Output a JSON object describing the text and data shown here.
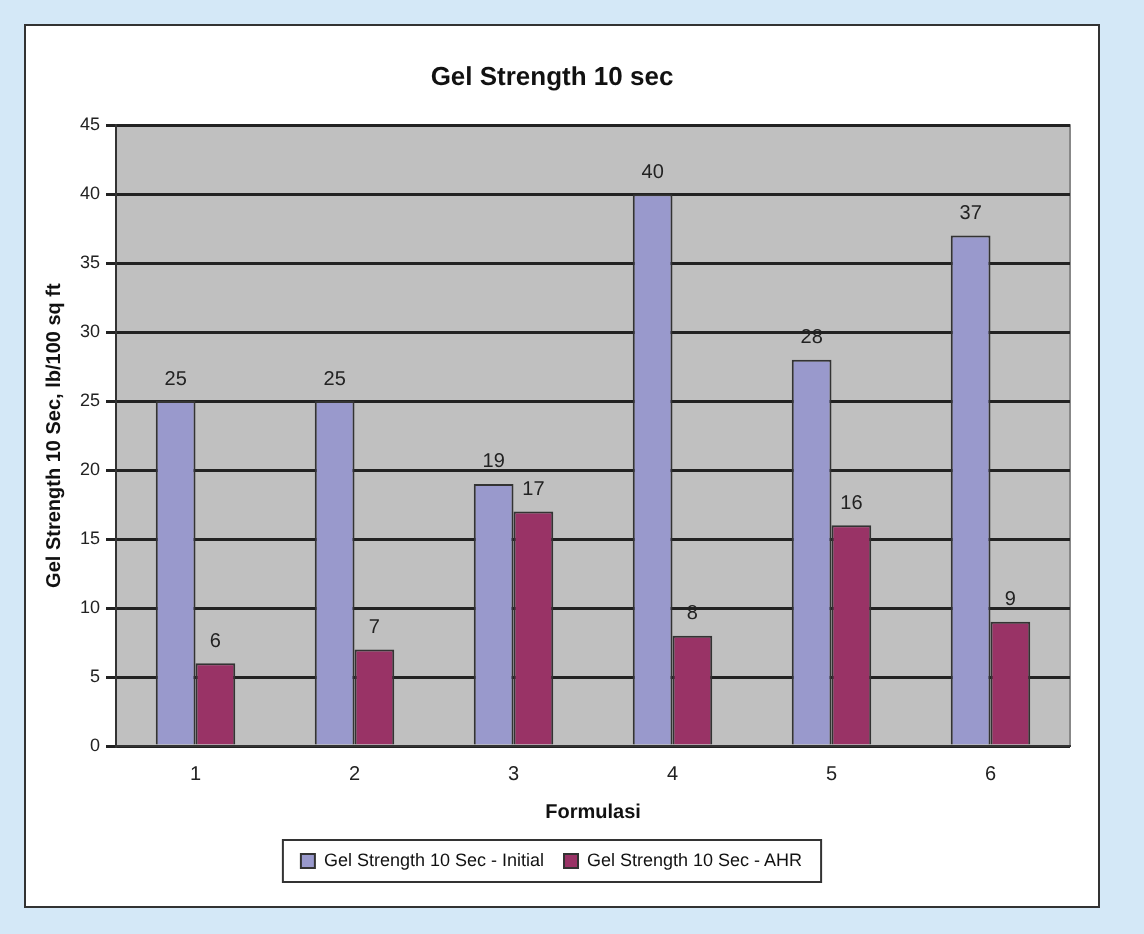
{
  "chart_data": {
    "type": "bar",
    "title": "Gel Strength 10 sec",
    "xlabel": "Formulasi",
    "ylabel": "Gel Strength 10 Sec, lb/100 sq ft",
    "categories": [
      "1",
      "2",
      "3",
      "4",
      "5",
      "6"
    ],
    "series": [
      {
        "name": "Gel Strength 10 Sec - Initial",
        "color": "#9999cc",
        "values": [
          25,
          25,
          19,
          40,
          28,
          37
        ]
      },
      {
        "name": "Gel Strength 10 Sec - AHR",
        "color": "#993366",
        "values": [
          6,
          7,
          17,
          8,
          16,
          9
        ]
      }
    ],
    "ylim": [
      0,
      45
    ],
    "yticks": [
      0,
      5,
      10,
      15,
      20,
      25,
      30,
      35,
      40,
      45
    ],
    "grid": "y",
    "legend": "bottom",
    "data_labels": true
  }
}
